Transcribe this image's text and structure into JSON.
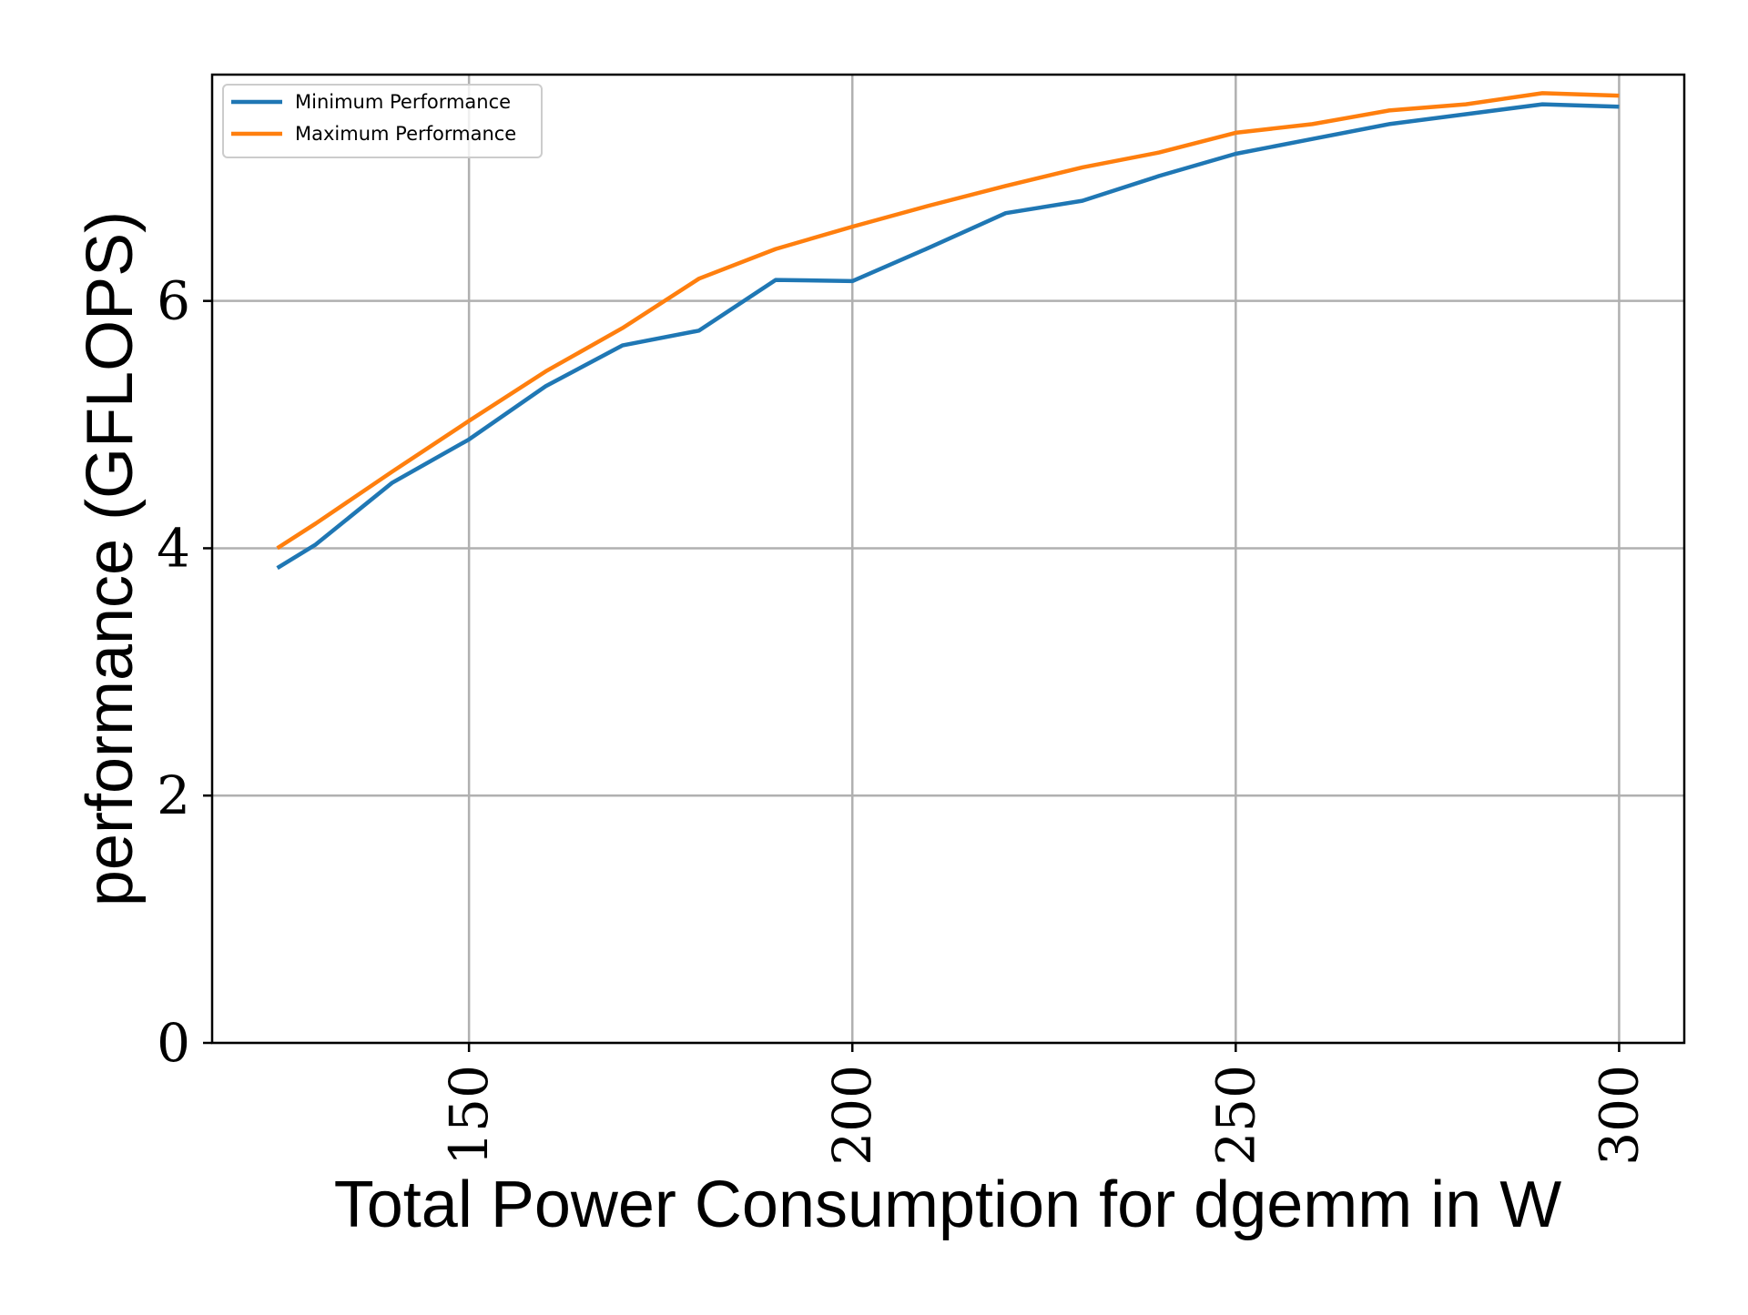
{
  "chart_data": {
    "type": "line",
    "title": "",
    "xlabel": "Total Power Consumption for dgemm in W",
    "ylabel": "performance (GFLOPS)",
    "xlim": [
      116.5,
      308.5
    ],
    "ylim": [
      0,
      7.83
    ],
    "xticks": [
      150,
      200,
      250,
      300
    ],
    "xtick_labels": [
      "150",
      "200",
      "250",
      "300"
    ],
    "xtick_rotation": 90,
    "yticks": [
      0,
      2,
      4,
      6
    ],
    "ytick_labels": [
      "0",
      "2",
      "4",
      "6"
    ],
    "grid": true,
    "legend_position": "upper-left",
    "series": [
      {
        "name": "Minimum Performance",
        "color": "#1f77b4",
        "x": [
          125,
          130,
          140,
          150,
          160,
          170,
          180,
          190,
          200,
          210,
          220,
          230,
          240,
          250,
          260,
          270,
          280,
          290,
          300
        ],
        "y": [
          3.84,
          4.03,
          4.53,
          4.88,
          5.31,
          5.64,
          5.76,
          6.17,
          6.16,
          6.43,
          6.71,
          6.81,
          7.01,
          7.19,
          7.31,
          7.43,
          7.51,
          7.59,
          7.57
        ]
      },
      {
        "name": "Maximum Performance",
        "color": "#ff7f0e",
        "x": [
          125,
          130,
          140,
          150,
          160,
          170,
          180,
          190,
          200,
          210,
          220,
          230,
          240,
          250,
          260,
          270,
          280,
          290,
          300
        ],
        "y": [
          4.0,
          4.2,
          4.62,
          5.03,
          5.43,
          5.78,
          6.18,
          6.42,
          6.6,
          6.77,
          6.93,
          7.08,
          7.2,
          7.36,
          7.43,
          7.54,
          7.59,
          7.68,
          7.66
        ]
      }
    ]
  }
}
